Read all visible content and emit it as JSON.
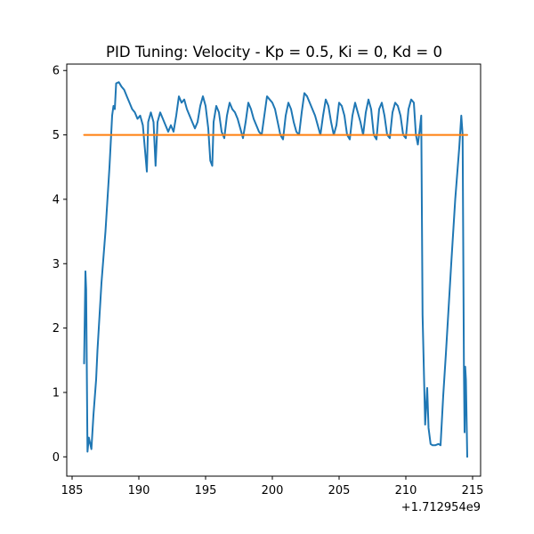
{
  "chart_data": {
    "type": "line",
    "title": "PID Tuning: Velocity - Kp = 0.5, Ki = 0, Kd = 0",
    "xlabel": "",
    "ylabel": "",
    "x_offset_label": "+1.712954e9",
    "xlim": [
      184.6,
      215.6
    ],
    "ylim": [
      -0.3,
      6.1
    ],
    "xticks": [
      185,
      190,
      195,
      200,
      205,
      210,
      215
    ],
    "yticks": [
      0,
      1,
      2,
      3,
      4,
      5,
      6
    ],
    "grid": false,
    "series": [
      {
        "color": "#1f77b4",
        "points": [
          [
            185.9,
            1.45
          ],
          [
            186.0,
            2.88
          ],
          [
            186.05,
            2.6
          ],
          [
            186.15,
            0.08
          ],
          [
            186.25,
            0.3
          ],
          [
            186.45,
            0.12
          ],
          [
            186.6,
            0.65
          ],
          [
            186.8,
            1.2
          ],
          [
            186.9,
            1.65
          ],
          [
            187.2,
            2.7
          ],
          [
            187.5,
            3.5
          ],
          [
            187.8,
            4.5
          ],
          [
            188.0,
            5.3
          ],
          [
            188.1,
            5.45
          ],
          [
            188.2,
            5.4
          ],
          [
            188.3,
            5.8
          ],
          [
            188.5,
            5.82
          ],
          [
            188.7,
            5.75
          ],
          [
            188.9,
            5.7
          ],
          [
            189.1,
            5.6
          ],
          [
            189.3,
            5.5
          ],
          [
            189.5,
            5.4
          ],
          [
            189.7,
            5.35
          ],
          [
            189.9,
            5.25
          ],
          [
            190.1,
            5.3
          ],
          [
            190.3,
            5.15
          ],
          [
            190.45,
            4.8
          ],
          [
            190.6,
            4.43
          ],
          [
            190.7,
            5.2
          ],
          [
            190.9,
            5.35
          ],
          [
            191.1,
            5.2
          ],
          [
            191.25,
            4.52
          ],
          [
            191.4,
            5.2
          ],
          [
            191.6,
            5.35
          ],
          [
            191.8,
            5.25
          ],
          [
            192.0,
            5.15
          ],
          [
            192.2,
            5.05
          ],
          [
            192.4,
            5.15
          ],
          [
            192.6,
            5.05
          ],
          [
            192.8,
            5.3
          ],
          [
            193.0,
            5.6
          ],
          [
            193.2,
            5.5
          ],
          [
            193.4,
            5.55
          ],
          [
            193.6,
            5.4
          ],
          [
            193.8,
            5.3
          ],
          [
            194.0,
            5.2
          ],
          [
            194.2,
            5.1
          ],
          [
            194.4,
            5.2
          ],
          [
            194.6,
            5.45
          ],
          [
            194.8,
            5.6
          ],
          [
            195.0,
            5.45
          ],
          [
            195.2,
            5.1
          ],
          [
            195.35,
            4.6
          ],
          [
            195.5,
            4.52
          ],
          [
            195.6,
            5.2
          ],
          [
            195.8,
            5.45
          ],
          [
            196.0,
            5.35
          ],
          [
            196.2,
            5.05
          ],
          [
            196.4,
            4.95
          ],
          [
            196.6,
            5.3
          ],
          [
            196.8,
            5.5
          ],
          [
            197.0,
            5.4
          ],
          [
            197.2,
            5.35
          ],
          [
            197.4,
            5.25
          ],
          [
            197.6,
            5.1
          ],
          [
            197.8,
            4.95
          ],
          [
            198.0,
            5.2
          ],
          [
            198.2,
            5.5
          ],
          [
            198.4,
            5.4
          ],
          [
            198.6,
            5.25
          ],
          [
            198.8,
            5.15
          ],
          [
            199.0,
            5.05
          ],
          [
            199.2,
            5.0
          ],
          [
            199.4,
            5.3
          ],
          [
            199.6,
            5.6
          ],
          [
            199.8,
            5.55
          ],
          [
            200.0,
            5.5
          ],
          [
            200.2,
            5.4
          ],
          [
            200.4,
            5.2
          ],
          [
            200.6,
            5.0
          ],
          [
            200.8,
            4.93
          ],
          [
            201.0,
            5.3
          ],
          [
            201.2,
            5.5
          ],
          [
            201.4,
            5.4
          ],
          [
            201.6,
            5.2
          ],
          [
            201.8,
            5.05
          ],
          [
            202.0,
            5.0
          ],
          [
            202.2,
            5.35
          ],
          [
            202.4,
            5.65
          ],
          [
            202.6,
            5.6
          ],
          [
            202.8,
            5.5
          ],
          [
            203.0,
            5.4
          ],
          [
            203.2,
            5.3
          ],
          [
            203.4,
            5.15
          ],
          [
            203.6,
            5.0
          ],
          [
            203.8,
            5.3
          ],
          [
            204.0,
            5.55
          ],
          [
            204.2,
            5.45
          ],
          [
            204.4,
            5.2
          ],
          [
            204.6,
            5.0
          ],
          [
            204.8,
            5.15
          ],
          [
            205.0,
            5.5
          ],
          [
            205.2,
            5.45
          ],
          [
            205.4,
            5.3
          ],
          [
            205.6,
            5.0
          ],
          [
            205.8,
            4.93
          ],
          [
            206.0,
            5.3
          ],
          [
            206.2,
            5.5
          ],
          [
            206.4,
            5.35
          ],
          [
            206.6,
            5.2
          ],
          [
            206.8,
            5.0
          ],
          [
            207.0,
            5.35
          ],
          [
            207.2,
            5.55
          ],
          [
            207.4,
            5.4
          ],
          [
            207.6,
            5.0
          ],
          [
            207.8,
            4.93
          ],
          [
            208.0,
            5.4
          ],
          [
            208.2,
            5.5
          ],
          [
            208.4,
            5.3
          ],
          [
            208.6,
            5.0
          ],
          [
            208.8,
            4.95
          ],
          [
            209.0,
            5.35
          ],
          [
            209.2,
            5.5
          ],
          [
            209.4,
            5.45
          ],
          [
            209.6,
            5.3
          ],
          [
            209.8,
            5.0
          ],
          [
            210.0,
            4.95
          ],
          [
            210.2,
            5.4
          ],
          [
            210.4,
            5.55
          ],
          [
            210.6,
            5.5
          ],
          [
            210.75,
            5.0
          ],
          [
            210.9,
            4.85
          ],
          [
            211.05,
            5.1
          ],
          [
            211.15,
            5.3
          ],
          [
            211.25,
            2.2
          ],
          [
            211.45,
            0.5
          ],
          [
            211.6,
            1.07
          ],
          [
            211.7,
            0.45
          ],
          [
            211.85,
            0.2
          ],
          [
            212.0,
            0.18
          ],
          [
            212.2,
            0.18
          ],
          [
            212.45,
            0.2
          ],
          [
            212.6,
            0.18
          ],
          [
            212.8,
            0.95
          ],
          [
            213.0,
            1.6
          ],
          [
            213.2,
            2.3
          ],
          [
            213.4,
            3.0
          ],
          [
            213.7,
            4.0
          ],
          [
            214.0,
            4.8
          ],
          [
            214.15,
            5.3
          ],
          [
            214.25,
            5.0
          ],
          [
            214.35,
            1.3
          ],
          [
            214.4,
            0.38
          ],
          [
            214.45,
            1.4
          ],
          [
            214.5,
            1.2
          ],
          [
            214.6,
            0.0
          ]
        ]
      },
      {
        "color": "#ff7f0e",
        "points": [
          [
            185.9,
            5.0
          ],
          [
            214.6,
            5.0
          ]
        ]
      }
    ]
  }
}
